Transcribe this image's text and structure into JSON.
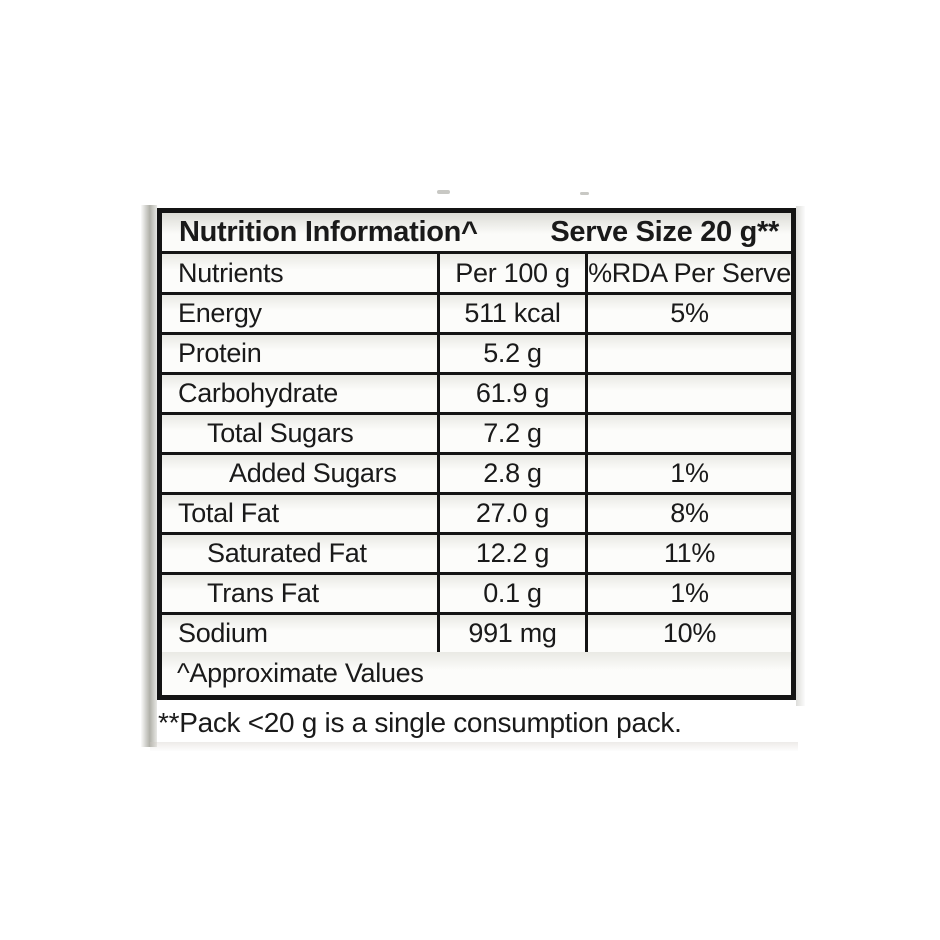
{
  "table": {
    "title": "Nutrition Information^",
    "serve_size": "Serve Size 20 g**",
    "columns": [
      "Nutrients",
      "Per 100 g",
      "%RDA Per Serve"
    ],
    "rows": [
      {
        "label": "Energy",
        "per_100g": "511 kcal",
        "rda": "5%",
        "indent": 0
      },
      {
        "label": "Protein",
        "per_100g": "5.2 g",
        "rda": "",
        "indent": 0
      },
      {
        "label": "Carbohydrate",
        "per_100g": "61.9 g",
        "rda": "",
        "indent": 0
      },
      {
        "label": "Total Sugars",
        "per_100g": "7.2 g",
        "rda": "",
        "indent": 1
      },
      {
        "label": "Added Sugars",
        "per_100g": "2.8 g",
        "rda": "1%",
        "indent": 2
      },
      {
        "label": "Total Fat",
        "per_100g": "27.0 g",
        "rda": "8%",
        "indent": 0
      },
      {
        "label": "Saturated Fat",
        "per_100g": "12.2 g",
        "rda": "11%",
        "indent": 1
      },
      {
        "label": "Trans Fat",
        "per_100g": "0.1 g",
        "rda": "1%",
        "indent": 1
      },
      {
        "label": "Sodium",
        "per_100g": "991 mg",
        "rda": "10%",
        "indent": 0
      }
    ],
    "approx_note": "^Approximate Values"
  },
  "pack_note": "**Pack <20 g is a single consumption pack.",
  "colors": {
    "border": "#141414",
    "text": "#1a1a1a",
    "panel_bg": "#fdfdfb",
    "packet_gray": "#96968c",
    "page_bg": "#ffffff"
  }
}
